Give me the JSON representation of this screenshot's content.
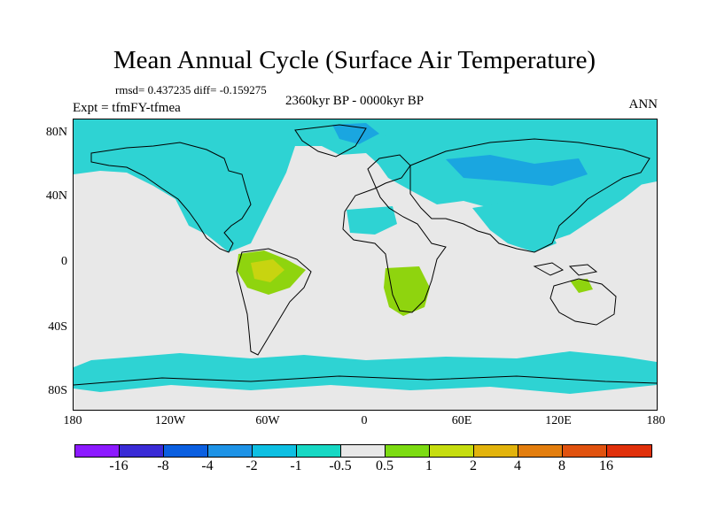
{
  "title": "Mean Annual Cycle (Surface Air Temperature)",
  "stats": "rmsd= 0.437235 diff= -0.159275",
  "period": "2360kyr BP - 0000kyr BP",
  "experiment": "Expt = tfmFY-tfmea",
  "season": "ANN",
  "lat_labels": [
    "80N",
    "40N",
    "0",
    "40S",
    "80S"
  ],
  "lon_labels": [
    "180",
    "120W",
    "60W",
    "0",
    "60E",
    "120E",
    "180"
  ],
  "colorbar": {
    "colors": [
      "#8c1aff",
      "#3a2bd6",
      "#0b5fe0",
      "#1e93e6",
      "#0ebfe2",
      "#17d8c4",
      "#e8e8e8",
      "#7cdb12",
      "#c6dd10",
      "#e2b30c",
      "#e37e0e",
      "#e0520f",
      "#e0300b"
    ],
    "labels": [
      "-16",
      "-8",
      "-4",
      "-2",
      "-1",
      "-0.5",
      "0.5",
      "1",
      "2",
      "4",
      "8",
      "16"
    ]
  },
  "anomaly_colors": {
    "cool_light": "#2ed3d3",
    "cool_mid": "#1aa6e0",
    "warm_light": "#8fd40e",
    "warm_mid": "#c8d410"
  }
}
